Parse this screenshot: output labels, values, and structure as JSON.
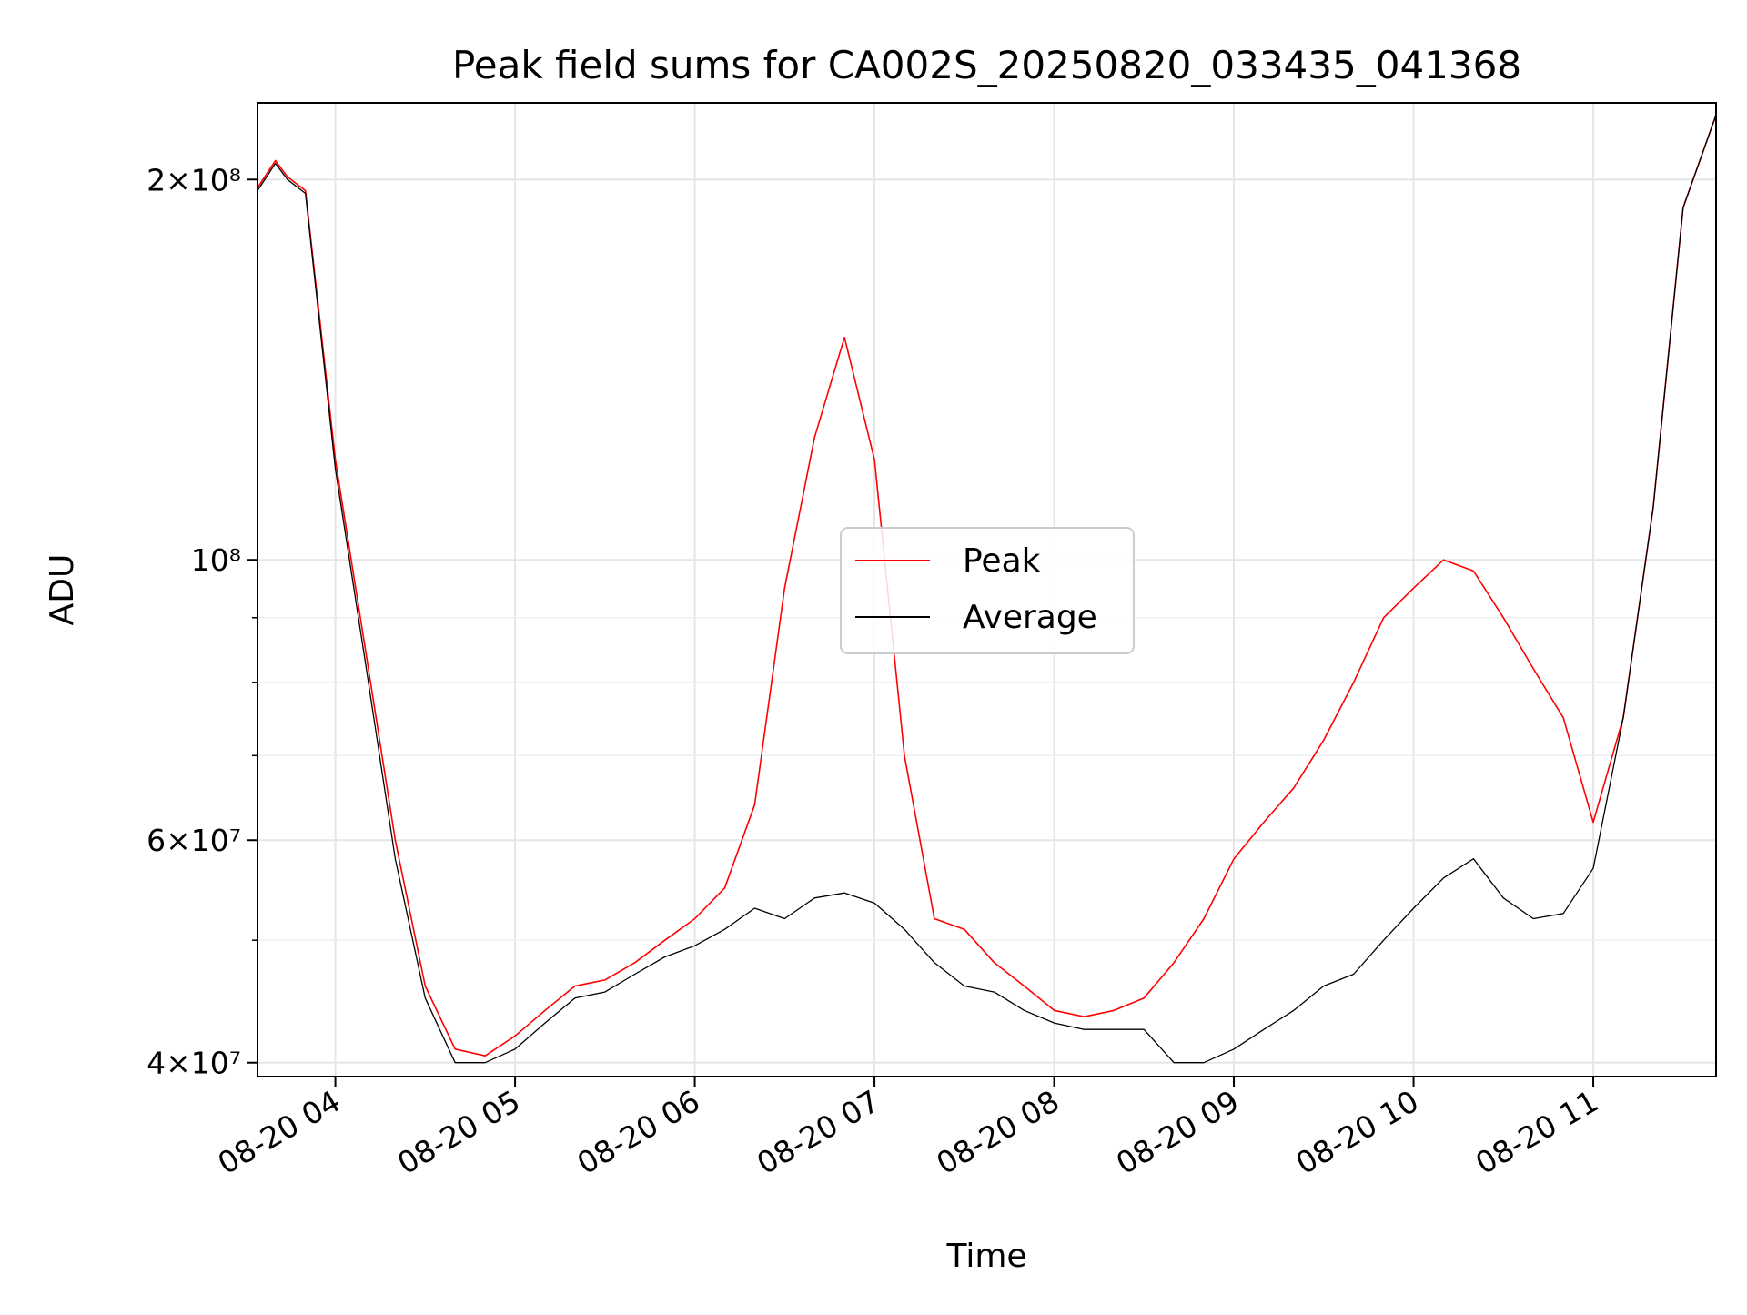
{
  "chart_data": {
    "type": "line",
    "title": "Peak field sums for CA002S_20250820_033435_041368",
    "xlabel": "Time",
    "ylabel": "ADU",
    "yscale": "log",
    "ylim": [
      39000000,
      230000000
    ],
    "xlim": [
      "2025-08-20 03:34",
      "2025-08-20 11:41"
    ],
    "x_ticks": [
      "08-20 04",
      "08-20 05",
      "08-20 06",
      "08-20 07",
      "08-20 08",
      "08-20 09",
      "08-20 10",
      "08-20 11"
    ],
    "y_ticks": [
      {
        "value": 40000000,
        "label": "4×10⁷"
      },
      {
        "value": 60000000,
        "label": "6×10⁷"
      },
      {
        "value": 100000000,
        "label": "10⁸"
      },
      {
        "value": 200000000,
        "label": "2×10⁸"
      }
    ],
    "grid": true,
    "legend_position": "center",
    "series": [
      {
        "name": "Peak",
        "color": "#ff0000",
        "x": [
          "2025-08-20 03:34",
          "2025-08-20 03:40",
          "2025-08-20 03:44",
          "2025-08-20 03:50",
          "2025-08-20 04:00",
          "2025-08-20 04:10",
          "2025-08-20 04:20",
          "2025-08-20 04:30",
          "2025-08-20 04:40",
          "2025-08-20 04:50",
          "2025-08-20 05:00",
          "2025-08-20 05:10",
          "2025-08-20 05:20",
          "2025-08-20 05:30",
          "2025-08-20 05:40",
          "2025-08-20 05:50",
          "2025-08-20 06:00",
          "2025-08-20 06:10",
          "2025-08-20 06:20",
          "2025-08-20 06:30",
          "2025-08-20 06:40",
          "2025-08-20 06:50",
          "2025-08-20 07:00",
          "2025-08-20 07:10",
          "2025-08-20 07:20",
          "2025-08-20 07:30",
          "2025-08-20 07:40",
          "2025-08-20 07:50",
          "2025-08-20 08:00",
          "2025-08-20 08:10",
          "2025-08-20 08:20",
          "2025-08-20 08:30",
          "2025-08-20 08:40",
          "2025-08-20 08:50",
          "2025-08-20 09:00",
          "2025-08-20 09:10",
          "2025-08-20 09:20",
          "2025-08-20 09:30",
          "2025-08-20 09:40",
          "2025-08-20 09:50",
          "2025-08-20 10:00",
          "2025-08-20 10:10",
          "2025-08-20 10:20",
          "2025-08-20 10:30",
          "2025-08-20 10:40",
          "2025-08-20 10:50",
          "2025-08-20 11:00",
          "2025-08-20 11:10",
          "2025-08-20 11:20",
          "2025-08-20 11:30",
          "2025-08-20 11:41"
        ],
        "values": [
          197000000,
          207000000,
          201000000,
          196000000,
          120000000,
          85000000,
          60000000,
          46000000,
          41000000,
          40500000,
          42000000,
          44000000,
          46000000,
          46500000,
          48000000,
          50000000,
          52000000,
          55000000,
          64000000,
          95000000,
          125000000,
          150000000,
          120000000,
          70000000,
          52000000,
          51000000,
          48000000,
          46000000,
          44000000,
          43500000,
          44000000,
          45000000,
          48000000,
          52000000,
          58000000,
          62000000,
          66000000,
          72000000,
          80000000,
          90000000,
          95000000,
          100000000,
          98000000,
          90000000,
          82000000,
          75000000,
          62000000,
          75000000,
          110000000,
          190000000,
          225000000
        ]
      },
      {
        "name": "Average",
        "color": "#000000",
        "x": [
          "2025-08-20 03:34",
          "2025-08-20 03:40",
          "2025-08-20 03:44",
          "2025-08-20 03:50",
          "2025-08-20 04:00",
          "2025-08-20 04:10",
          "2025-08-20 04:20",
          "2025-08-20 04:30",
          "2025-08-20 04:40",
          "2025-08-20 04:50",
          "2025-08-20 05:00",
          "2025-08-20 05:10",
          "2025-08-20 05:20",
          "2025-08-20 05:30",
          "2025-08-20 05:40",
          "2025-08-20 05:50",
          "2025-08-20 06:00",
          "2025-08-20 06:10",
          "2025-08-20 06:20",
          "2025-08-20 06:30",
          "2025-08-20 06:40",
          "2025-08-20 06:50",
          "2025-08-20 07:00",
          "2025-08-20 07:10",
          "2025-08-20 07:20",
          "2025-08-20 07:30",
          "2025-08-20 07:40",
          "2025-08-20 07:50",
          "2025-08-20 08:00",
          "2025-08-20 08:10",
          "2025-08-20 08:20",
          "2025-08-20 08:30",
          "2025-08-20 08:40",
          "2025-08-20 08:50",
          "2025-08-20 09:00",
          "2025-08-20 09:10",
          "2025-08-20 09:20",
          "2025-08-20 09:30",
          "2025-08-20 09:40",
          "2025-08-20 09:50",
          "2025-08-20 10:00",
          "2025-08-20 10:10",
          "2025-08-20 10:20",
          "2025-08-20 10:30",
          "2025-08-20 10:40",
          "2025-08-20 10:50",
          "2025-08-20 11:00",
          "2025-08-20 11:10",
          "2025-08-20 11:20",
          "2025-08-20 11:30",
          "2025-08-20 11:41"
        ],
        "values": [
          196000000,
          206000000,
          200000000,
          195000000,
          118000000,
          83000000,
          58000000,
          45000000,
          40000000,
          40000000,
          41000000,
          43000000,
          45000000,
          45500000,
          47000000,
          48500000,
          49500000,
          51000000,
          53000000,
          52000000,
          54000000,
          54500000,
          53500000,
          51000000,
          48000000,
          46000000,
          45500000,
          44000000,
          43000000,
          42500000,
          42500000,
          42500000,
          40000000,
          40000000,
          41000000,
          42500000,
          44000000,
          46000000,
          47000000,
          50000000,
          53000000,
          56000000,
          58000000,
          54000000,
          52000000,
          52500000,
          57000000,
          75000000,
          110000000,
          190000000,
          225000000
        ]
      }
    ]
  }
}
